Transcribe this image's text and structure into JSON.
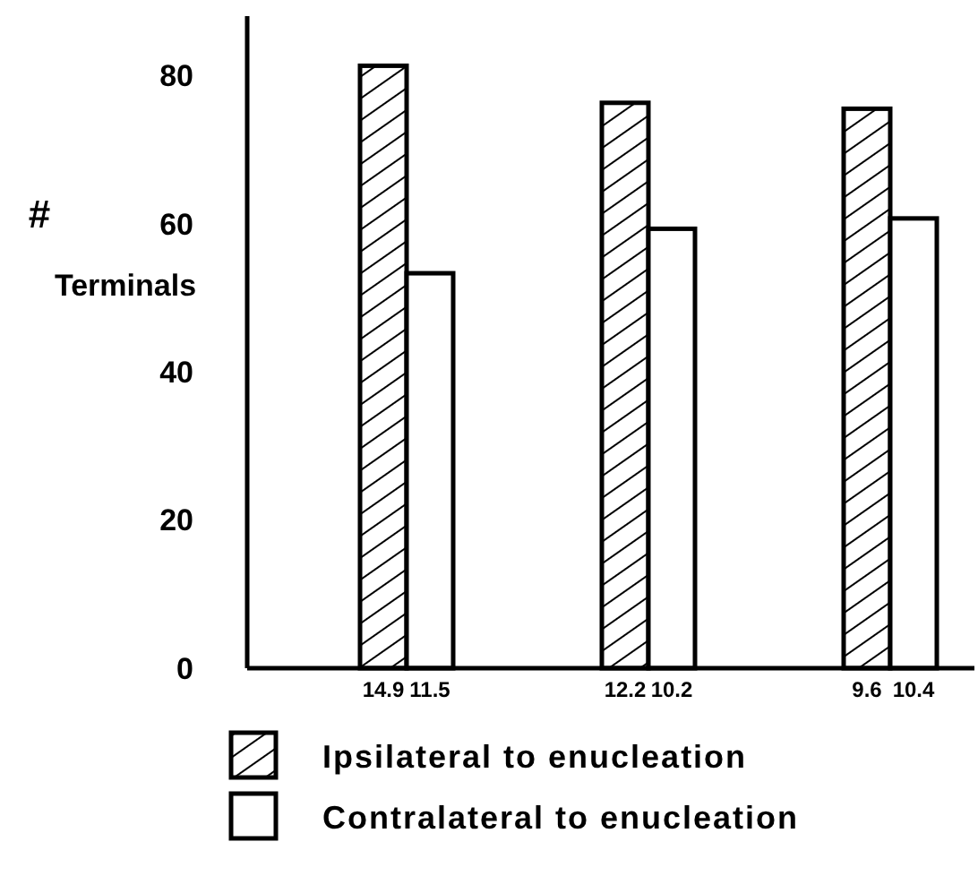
{
  "chart_data": {
    "type": "bar",
    "ylabel": "#\nTerminals",
    "categories": [
      "14.9",
      "11.5",
      "12.2",
      "10.2",
      "9.6",
      "10.4"
    ],
    "series": [
      {
        "name": "Ipsilateral to enucleation",
        "color": "#000000",
        "values": [
          81.3,
          null,
          76.3,
          null,
          75.5,
          null
        ]
      },
      {
        "name": "Contralateral to enucleation",
        "color": "#ffffff",
        "values": [
          null,
          53.3,
          null,
          59.3,
          null,
          60.7
        ]
      }
    ],
    "ylim": [
      0,
      88
    ],
    "yticks": [
      0,
      20,
      40,
      60,
      80
    ],
    "grid": false,
    "legend": "bottom"
  }
}
